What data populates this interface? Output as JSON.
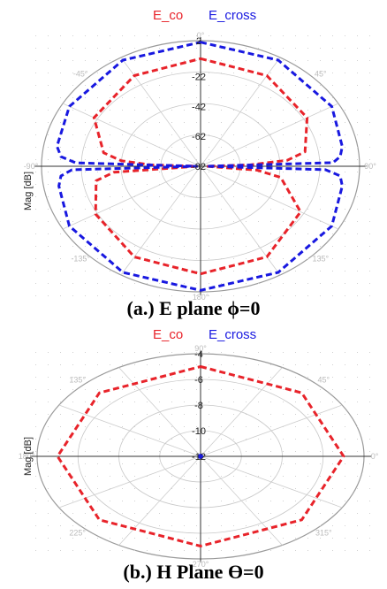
{
  "chart_data": [
    {
      "type": "polar",
      "caption": "(a.) E plane ϕ=0",
      "ylabel": "Mag [dB]",
      "radial_ticks": [
        "2",
        "-22",
        "-42",
        "-62",
        "-82"
      ],
      "radial_range": [
        -82,
        2
      ],
      "angle_labels": [
        "0°",
        "45°",
        "90°",
        "135°",
        "180°",
        "-135°",
        "-90°",
        "-45°"
      ],
      "grid": true,
      "legend": "top-center",
      "series": [
        {
          "name": "E_co",
          "color": "#e8232a",
          "theta_deg": [
            0,
            30,
            60,
            80,
            85,
            88,
            90,
            95,
            100,
            120,
            150,
            180,
            210,
            240,
            260,
            265,
            270,
            272,
            275,
            280,
            300,
            330
          ],
          "r_db": [
            -10,
            -12,
            -17,
            -26,
            -36,
            -56,
            -79,
            -52,
            -39,
            -21,
            -12,
            -10,
            -12,
            -18,
            -26,
            -36,
            -80,
            -56,
            -40,
            -30,
            -17,
            -12
          ]
        },
        {
          "name": "E_cross",
          "color": "#1818e0",
          "theta_deg": [
            0,
            30,
            60,
            80,
            85,
            88,
            90,
            92,
            95,
            100,
            120,
            150,
            180,
            210,
            240,
            260,
            265,
            268,
            270,
            272,
            275,
            280,
            300,
            330
          ],
          "r_db": [
            1,
            0,
            -2,
            -6,
            -8,
            -12,
            -79,
            -16,
            -8,
            -6,
            -2,
            0,
            1,
            0,
            -2,
            -6,
            -8,
            -14,
            -80,
            -16,
            -8,
            -5,
            -2,
            0
          ]
        }
      ]
    },
    {
      "type": "polar",
      "caption": "(b.) H Plane ϴ=0",
      "ylabel": "Mag [dB]",
      "radial_ticks": [
        "-4",
        "-6",
        "-8",
        "-10",
        "-12"
      ],
      "radial_range": [
        -12,
        -4
      ],
      "angle_labels": [
        "90°",
        "45°",
        "0°",
        "315°",
        "270°",
        "225°",
        "180°",
        "135°"
      ],
      "grid": true,
      "legend": "top-center",
      "series": [
        {
          "name": "E_co",
          "color": "#e8232a",
          "theta_deg": [
            0,
            45,
            90,
            135,
            180,
            225,
            270,
            315
          ],
          "r_db": [
            -5,
            -5,
            -5,
            -5,
            -5,
            -5,
            -5,
            -5
          ]
        },
        {
          "name": "E_cross",
          "color": "#1818e0",
          "theta_deg": [
            0,
            90,
            180,
            270
          ],
          "r_db": [
            -11.9,
            -11.9,
            -11.9,
            -11.9
          ]
        }
      ]
    }
  ]
}
